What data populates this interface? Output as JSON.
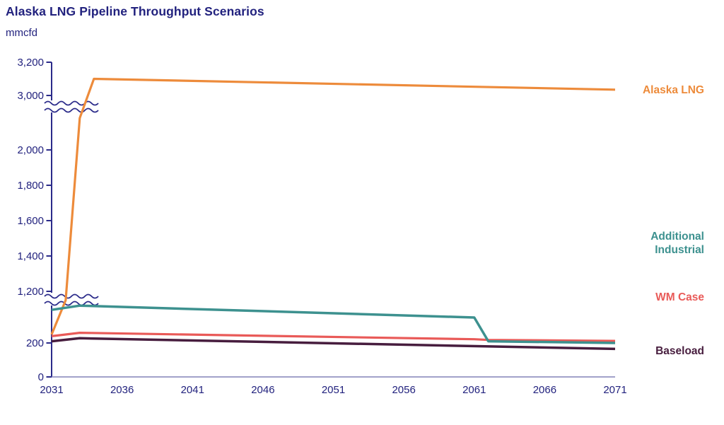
{
  "header": {
    "title": "Alaska LNG Pipeline Throughput Scenarios",
    "unit": "mmcfd"
  },
  "colors": {
    "navy_text": "#22227E",
    "axis": "#2B2B8A",
    "x_axis": "#8484B8",
    "orange": "#ED8B3B",
    "teal": "#3D918F",
    "coral": "#E95A58",
    "maroon": "#471D3E"
  },
  "legend": {
    "alaska_lng": "Alaska LNG",
    "additional_industrial": "Additional\nIndustrial",
    "wm_case": "WM Case",
    "baseload": "Baseload"
  },
  "chart_data": {
    "type": "line",
    "title": "Alaska LNG Pipeline Throughput Scenarios",
    "ylabel": "mmcfd",
    "xlabel": "",
    "x_range": [
      2031,
      2071
    ],
    "x_ticks": [
      2031,
      2036,
      2041,
      2046,
      2051,
      2056,
      2061,
      2066,
      2071
    ],
    "y_ticks": [
      {
        "label": "0",
        "value": 0
      },
      {
        "label": "200",
        "value": 200
      },
      {
        "label": "1,200",
        "value": 1200
      },
      {
        "label": "1,400",
        "value": 1400
      },
      {
        "label": "1,600",
        "value": 1600
      },
      {
        "label": "1,800",
        "value": 1800
      },
      {
        "label": "2,000",
        "value": 2000
      },
      {
        "label": "3,000",
        "value": 3000
      },
      {
        "label": "3,200",
        "value": 3200
      }
    ],
    "axis_breaks_skipped_value_ranges": [
      [
        460,
        1150
      ],
      [
        2230,
        2940
      ]
    ],
    "grid": false,
    "legend_position": "right-margin",
    "series": [
      {
        "name": "Alaska LNG",
        "color_key": "orange",
        "points": [
          [
            2031,
            250
          ],
          [
            2032,
            1150
          ],
          [
            2033,
            2180
          ],
          [
            2034,
            3100
          ],
          [
            2071,
            3035
          ]
        ]
      },
      {
        "name": "WM Case",
        "color_key": "coral",
        "points": [
          [
            2031,
            240
          ],
          [
            2033,
            260
          ],
          [
            2061,
            222
          ],
          [
            2062,
            218
          ],
          [
            2071,
            212
          ]
        ]
      },
      {
        "name": "Additional Industrial",
        "color_key": "teal",
        "points": [
          [
            2031,
            395
          ],
          [
            2033,
            420
          ],
          [
            2061,
            350
          ],
          [
            2062,
            210
          ],
          [
            2071,
            200
          ]
        ]
      },
      {
        "name": "Baseload",
        "color_key": "maroon",
        "points": [
          [
            2031,
            210
          ],
          [
            2033,
            228
          ],
          [
            2071,
            165
          ]
        ]
      }
    ]
  }
}
